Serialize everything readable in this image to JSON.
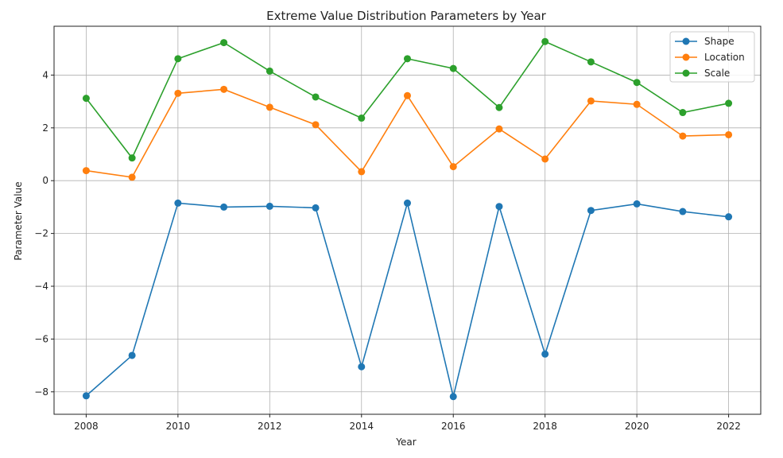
{
  "chart_data": {
    "type": "line",
    "title": "Extreme Value Distribution Parameters by Year",
    "xlabel": "Year",
    "ylabel": "Parameter Value",
    "x": [
      2008,
      2009,
      2010,
      2011,
      2012,
      2013,
      2014,
      2015,
      2016,
      2017,
      2018,
      2019,
      2020,
      2021,
      2022
    ],
    "xlim": [
      2007.3,
      2022.7
    ],
    "ylim": [
      -8.85,
      5.85
    ],
    "xticks": [
      2008,
      2010,
      2012,
      2014,
      2016,
      2018,
      2020,
      2022
    ],
    "yticks": [
      -8,
      -6,
      -4,
      -2,
      0,
      2,
      4
    ],
    "ytick_labels": [
      "−8",
      "−6",
      "−4",
      "−2",
      "0",
      "2",
      "4"
    ],
    "grid": true,
    "legend_position": "top-right",
    "series": [
      {
        "name": "Shape",
        "color": "#1f77b4",
        "values": [
          -8.15,
          -6.62,
          -0.85,
          -1.0,
          -0.97,
          -1.03,
          -7.05,
          -0.85,
          -8.18,
          -0.98,
          -6.57,
          -1.13,
          -0.88,
          -1.17,
          -1.37
        ]
      },
      {
        "name": "Location",
        "color": "#ff7f0e",
        "values": [
          0.38,
          0.13,
          3.31,
          3.46,
          2.78,
          2.12,
          0.34,
          3.22,
          0.53,
          1.96,
          0.82,
          3.02,
          2.89,
          1.69,
          1.74
        ]
      },
      {
        "name": "Scale",
        "color": "#2ca02c",
        "values": [
          3.12,
          0.86,
          4.62,
          5.23,
          4.15,
          3.17,
          2.37,
          4.62,
          4.25,
          2.77,
          5.27,
          4.5,
          3.72,
          2.58,
          2.93
        ]
      }
    ]
  }
}
